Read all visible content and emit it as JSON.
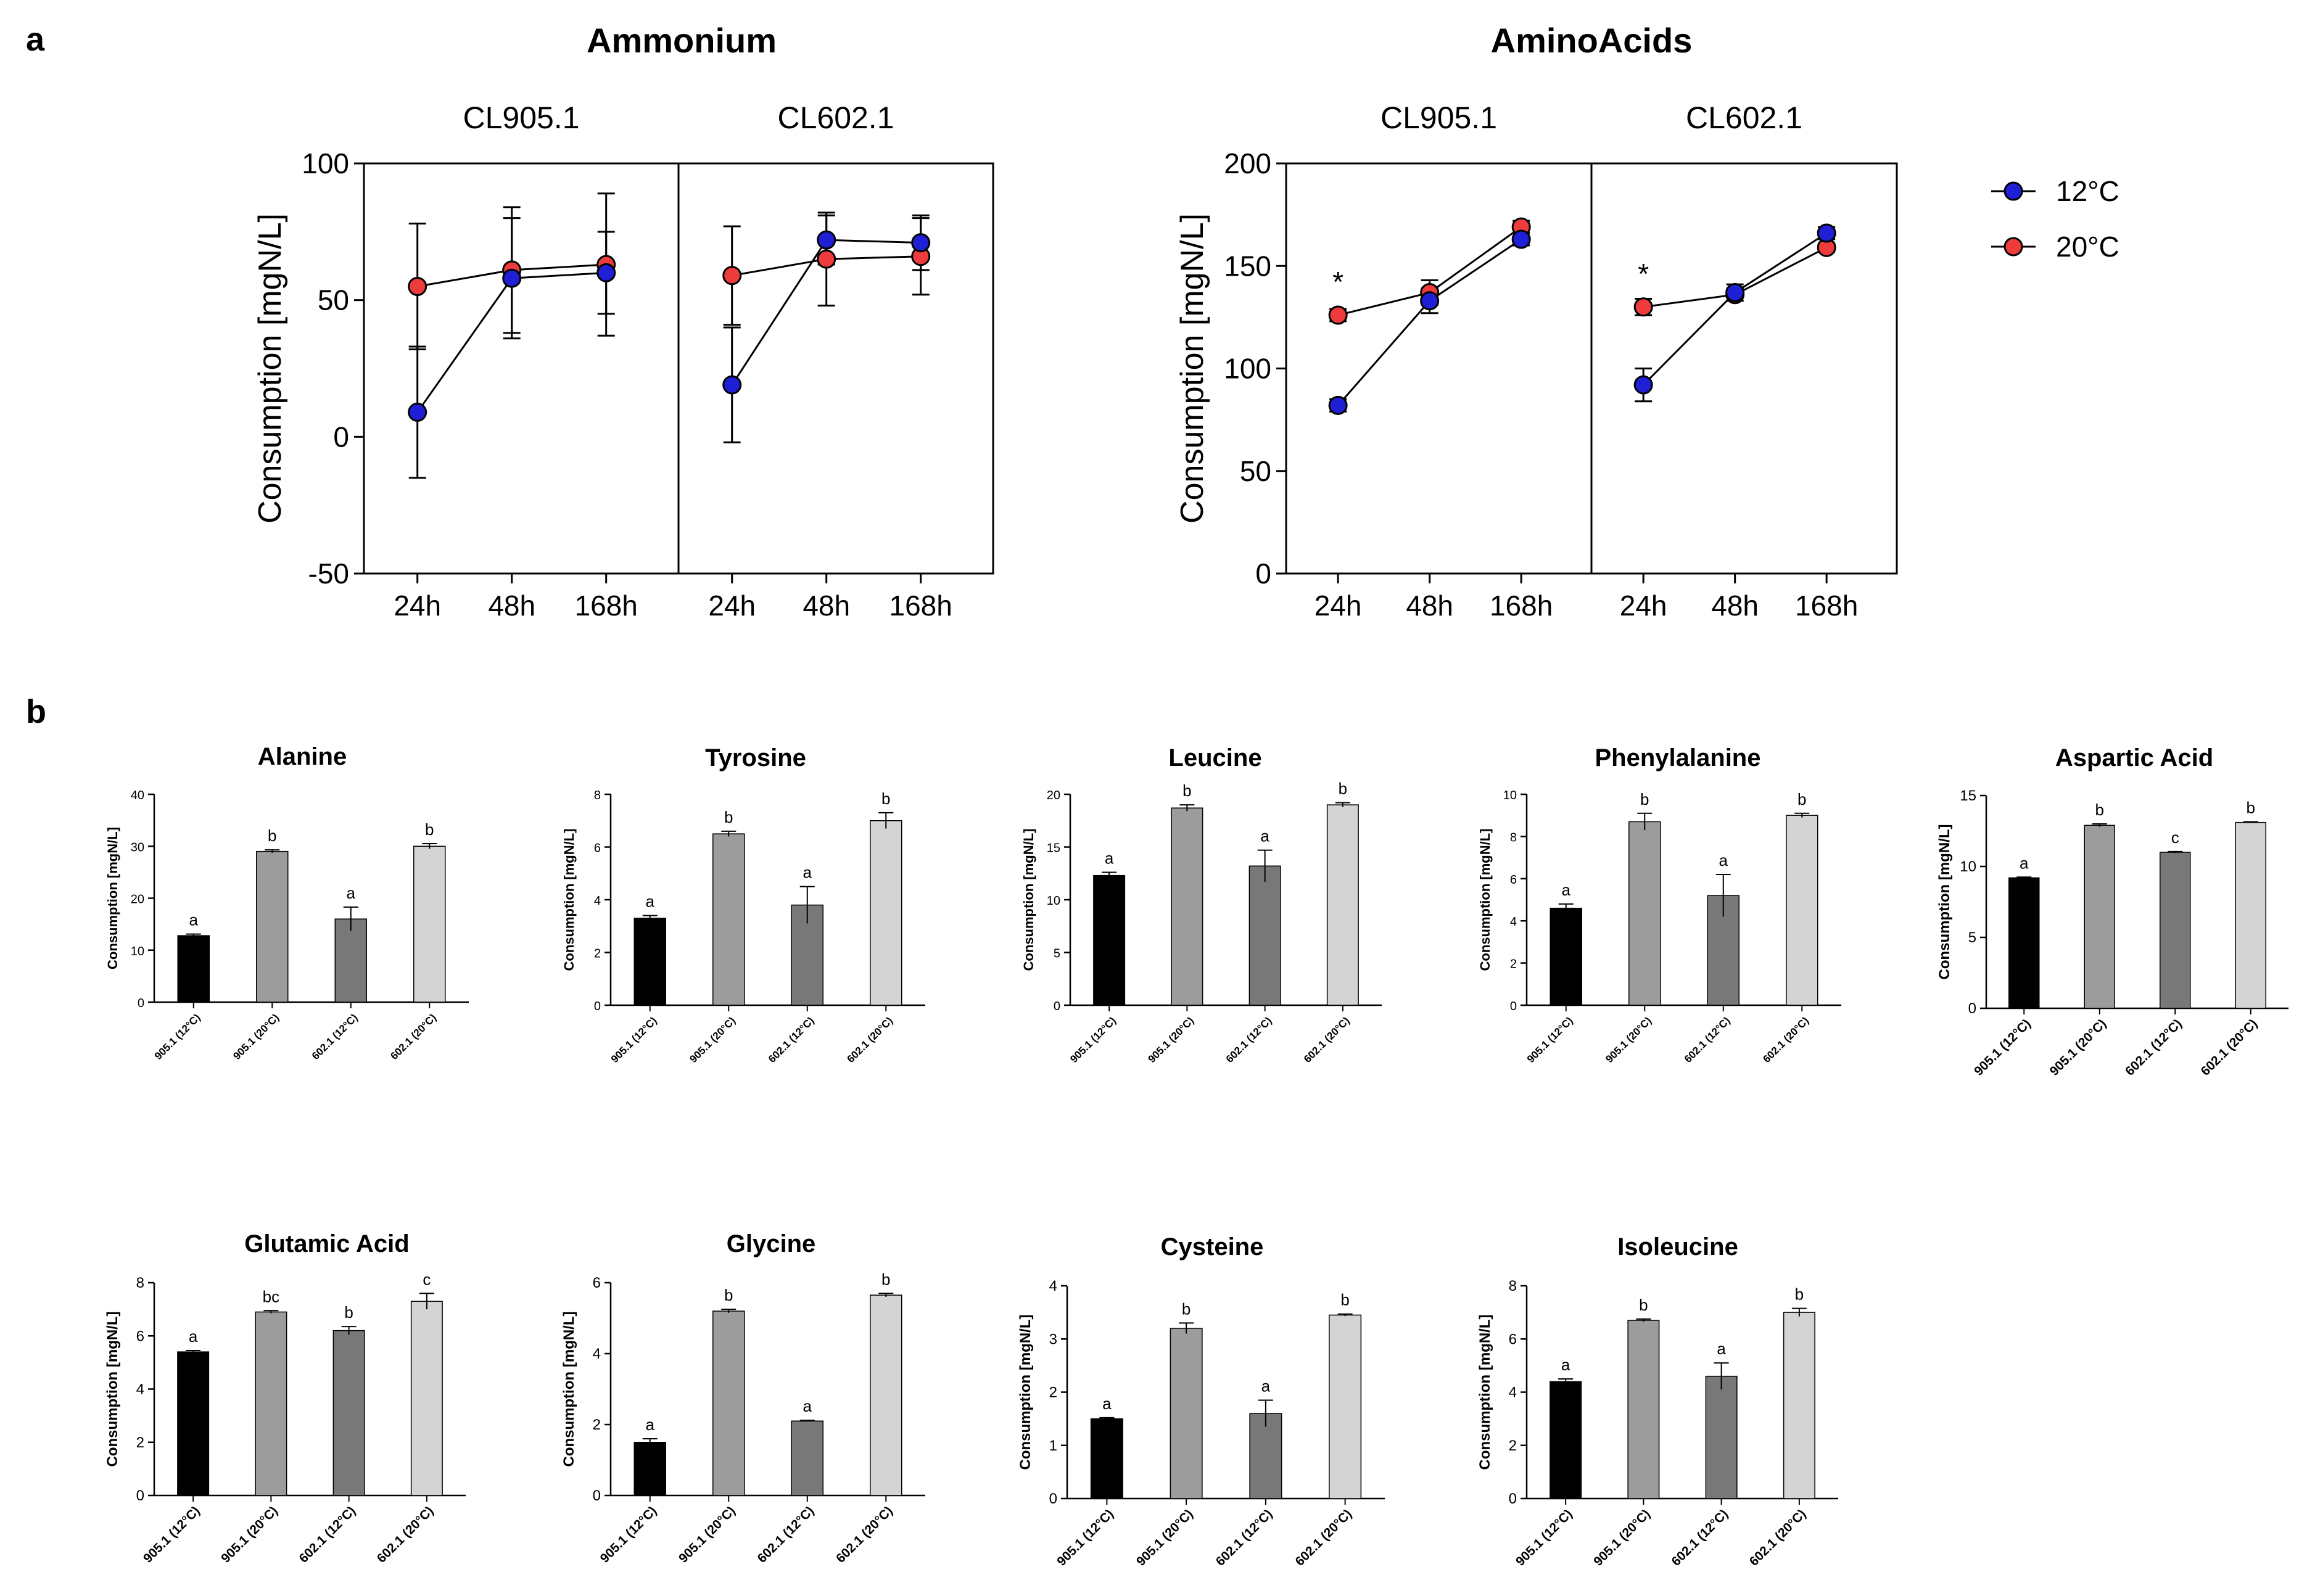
{
  "panel_a_label": "a",
  "panel_b_label": "b",
  "legend": [
    {
      "label": "12°C",
      "color": "#1f1fd6"
    },
    {
      "label": "20°C",
      "color": "#ee3b3b"
    }
  ],
  "line_charts": [
    {
      "title": "Ammonium",
      "ylabel": "Consumption [mgN/L]",
      "yticks": [
        -50,
        0,
        50,
        100
      ],
      "ylim": [
        -50,
        100
      ],
      "x_categories": [
        "24h",
        "48h",
        "168h"
      ],
      "subpanels": [
        {
          "label": "CL905.1",
          "series": {
            "12C": {
              "values": [
                9,
                58,
                60
              ],
              "err": [
                24,
                22,
                15
              ]
            },
            "20C": {
              "values": [
                55,
                61,
                63
              ],
              "err": [
                23,
                23,
                26
              ]
            }
          },
          "annotations": [
            "",
            "",
            ""
          ]
        },
        {
          "label": "CL602.1",
          "series": {
            "12C": {
              "values": [
                19,
                72,
                71
              ],
              "err": [
                21,
                9,
                10
              ]
            },
            "20C": {
              "values": [
                59,
                65,
                66
              ],
              "err": [
                18,
                17,
                14
              ]
            }
          },
          "annotations": [
            "",
            "",
            ""
          ]
        }
      ]
    },
    {
      "title": "AminoAcids",
      "ylabel": "Consumption [mgN/L]",
      "yticks": [
        0,
        50,
        100,
        150,
        200
      ],
      "ylim": [
        0,
        200
      ],
      "x_categories": [
        "24h",
        "48h",
        "168h"
      ],
      "subpanels": [
        {
          "label": "CL905.1",
          "series": {
            "12C": {
              "values": [
                82,
                133,
                163
              ],
              "err": [
                3,
                6,
                3
              ]
            },
            "20C": {
              "values": [
                126,
                137,
                169
              ],
              "err": [
                3,
                6,
                3
              ]
            }
          },
          "annotations": [
            "*",
            "",
            ""
          ]
        },
        {
          "label": "CL602.1",
          "series": {
            "12C": {
              "values": [
                92,
                137,
                166
              ],
              "err": [
                8,
                4,
                3
              ]
            },
            "20C": {
              "values": [
                130,
                136,
                159
              ],
              "err": [
                4,
                3,
                2
              ]
            }
          },
          "annotations": [
            "*",
            "",
            ""
          ]
        }
      ]
    }
  ],
  "bar_categories": [
    "905.1 (12°C)",
    "905.1 (20°C)",
    "602.1 (12°C)",
    "602.1 (20°C)"
  ],
  "bar_colors": [
    "#000000",
    "#9c9c9c",
    "#787878",
    "#d4d4d4"
  ],
  "bar_ylabel": "Consumption [mgN/L]",
  "chart_data": [
    {
      "type": "bar",
      "title": "Alanine",
      "ylim": [
        0,
        40
      ],
      "yticks": [
        0,
        10,
        20,
        30,
        40
      ],
      "values": [
        12.8,
        29,
        16,
        30
      ],
      "err": [
        0.3,
        0.3,
        2.3,
        0.5
      ],
      "letters": [
        "a",
        "b",
        "a",
        "b"
      ]
    },
    {
      "type": "bar",
      "title": "Tyrosine",
      "ylim": [
        0,
        8
      ],
      "yticks": [
        0,
        2,
        4,
        6,
        8
      ],
      "values": [
        3.3,
        6.5,
        3.8,
        7.0
      ],
      "err": [
        0.1,
        0.1,
        0.7,
        0.3
      ],
      "letters": [
        "a",
        "b",
        "a",
        "b"
      ]
    },
    {
      "type": "bar",
      "title": "Leucine",
      "ylim": [
        0,
        20
      ],
      "yticks": [
        0,
        5,
        10,
        15,
        20
      ],
      "values": [
        12.3,
        18.7,
        13.2,
        19
      ],
      "err": [
        0.3,
        0.3,
        1.5,
        0.2
      ],
      "letters": [
        "a",
        "b",
        "a",
        "b"
      ]
    },
    {
      "type": "bar",
      "title": "Phenylalanine",
      "ylim": [
        0,
        10
      ],
      "yticks": [
        0,
        2,
        4,
        6,
        8,
        10
      ],
      "values": [
        4.6,
        8.7,
        5.2,
        9.0
      ],
      "err": [
        0.2,
        0.4,
        1.0,
        0.1
      ],
      "letters": [
        "a",
        "b",
        "a",
        "b"
      ]
    },
    {
      "type": "bar",
      "title": "Aspartic Acid",
      "ylim": [
        0,
        15
      ],
      "yticks": [
        0,
        5,
        10,
        15
      ],
      "values": [
        9.2,
        12.9,
        11,
        13.1
      ],
      "err": [
        0.05,
        0.1,
        0.05,
        0.05
      ],
      "letters": [
        "a",
        "b",
        "c",
        "b"
      ]
    },
    {
      "type": "bar",
      "title": "Glutamic Acid",
      "ylim": [
        0,
        8
      ],
      "yticks": [
        0,
        2,
        4,
        6,
        8
      ],
      "values": [
        5.4,
        6.9,
        6.2,
        7.3
      ],
      "err": [
        0.05,
        0.05,
        0.15,
        0.3
      ],
      "letters": [
        "a",
        "bc",
        "b",
        "c"
      ]
    },
    {
      "type": "bar",
      "title": "Glycine",
      "ylim": [
        0,
        6
      ],
      "yticks": [
        0,
        2,
        4,
        6
      ],
      "values": [
        1.5,
        5.2,
        2.1,
        5.65
      ],
      "err": [
        0.1,
        0.05,
        0.02,
        0.05
      ],
      "letters": [
        "a",
        "b",
        "a",
        "b"
      ]
    },
    {
      "type": "bar",
      "title": "Cysteine",
      "ylim": [
        0,
        4
      ],
      "yticks": [
        0,
        1,
        2,
        3,
        4
      ],
      "values": [
        1.5,
        3.2,
        1.6,
        3.45
      ],
      "err": [
        0.02,
        0.1,
        0.25,
        0.02
      ],
      "letters": [
        "a",
        "b",
        "a",
        "b"
      ]
    },
    {
      "type": "bar",
      "title": "Isoleucine",
      "ylim": [
        0,
        8
      ],
      "yticks": [
        0,
        2,
        4,
        6,
        8
      ],
      "values": [
        4.4,
        6.7,
        4.6,
        7.0
      ],
      "err": [
        0.1,
        0.05,
        0.5,
        0.15
      ],
      "letters": [
        "a",
        "b",
        "a",
        "b"
      ]
    }
  ]
}
